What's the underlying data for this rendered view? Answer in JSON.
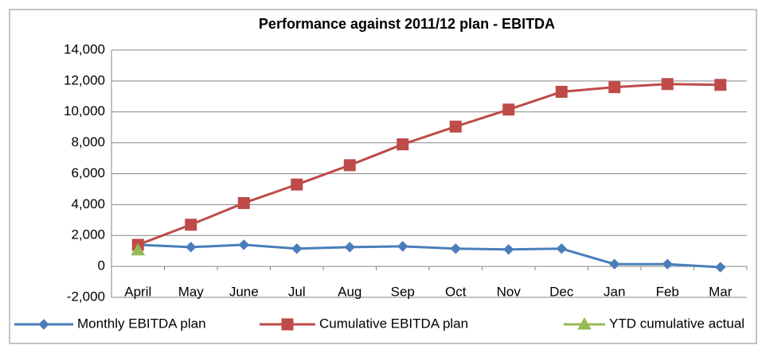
{
  "chart_data": {
    "type": "line",
    "title": "Performance against 2011/12  plan - EBITDA",
    "categories": [
      "April",
      "May",
      "June",
      "Jul",
      "Aug",
      "Sep",
      "Oct",
      "Nov",
      "Dec",
      "Jan",
      "Feb",
      "Mar"
    ],
    "series": [
      {
        "name": "Monthly EBITDA  plan",
        "color": "#4a7ebb",
        "marker": "diamond",
        "values": [
          1400,
          1250,
          1400,
          1150,
          1250,
          1300,
          1150,
          1100,
          1150,
          150,
          150,
          -50
        ]
      },
      {
        "name": "Cumulative EBITDA  plan",
        "color": "#be4b48",
        "marker": "square",
        "values": [
          1400,
          2700,
          4100,
          5300,
          6550,
          7900,
          9050,
          10150,
          11300,
          11600,
          11800,
          11750
        ]
      },
      {
        "name": "YTD cumulative actual",
        "color": "#98b954",
        "marker": "triangle",
        "values": [
          1050,
          null,
          null,
          null,
          null,
          null,
          null,
          null,
          null,
          null,
          null,
          null
        ]
      }
    ],
    "ylim": [
      -2000,
      14000
    ],
    "yticks": [
      {
        "value": -2000,
        "label": "-2,000"
      },
      0,
      {
        "value": 2000,
        "label": "2,000"
      },
      {
        "value": 4000,
        "label": "4,000"
      },
      {
        "value": 6000,
        "label": "6,000"
      },
      {
        "value": 8000,
        "label": "8,000"
      },
      {
        "value": 10000,
        "label": "10,000"
      },
      {
        "value": 12000,
        "label": "12,000"
      },
      {
        "value": 14000,
        "label": "14,000"
      }
    ],
    "grid": true,
    "legend": "bottom"
  }
}
